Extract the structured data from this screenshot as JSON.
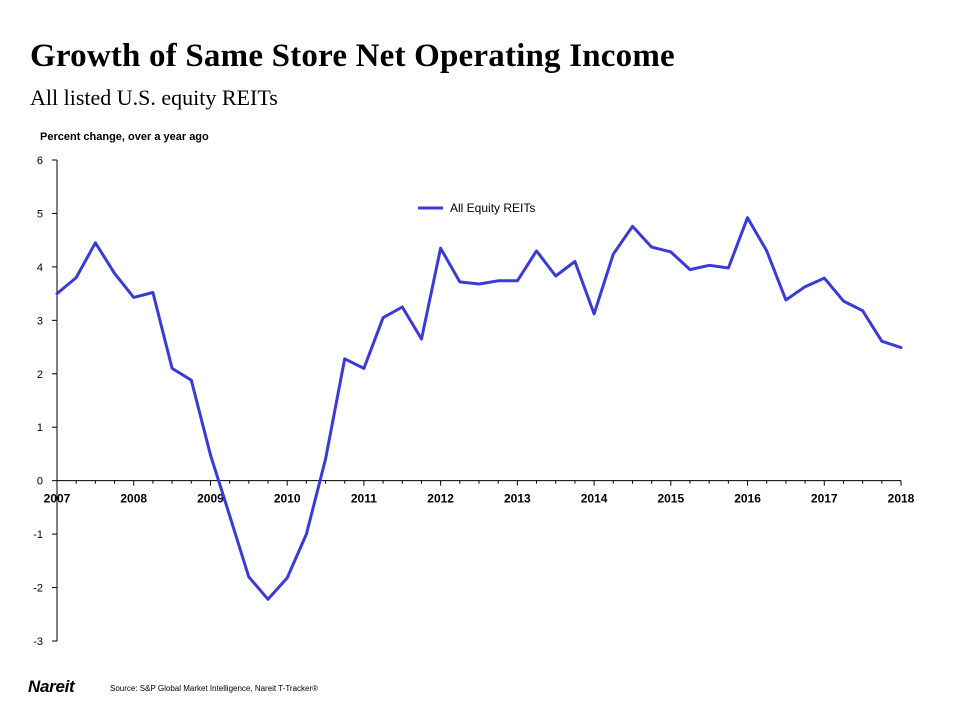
{
  "header": {
    "title": "Growth of Same Store Net Operating Income",
    "subtitle": "All listed U.S. equity REITs"
  },
  "footer": {
    "brand": "Nareit",
    "source": "Source: S&P Global Market Intelligence, Nareit T-Tracker®"
  },
  "colors": {
    "series": "#3a3ad8",
    "axis": "#000000"
  },
  "chart_data": {
    "type": "line",
    "ylabel": "Percent change, over a year ago",
    "xlabel": "",
    "ylim": [
      -3,
      6
    ],
    "yticks": [
      6,
      5,
      4,
      3,
      2,
      1,
      0,
      -1,
      -2,
      -3
    ],
    "xticks": [
      "2007",
      "2008",
      "2009",
      "2010",
      "2011",
      "2012",
      "2013",
      "2014",
      "2015",
      "2016",
      "2017",
      "2018"
    ],
    "xlim": [
      2007,
      2018
    ],
    "grid": false,
    "legend_position": "top-center",
    "series": [
      {
        "name": "All Equity REITs",
        "x": [
          2007.0,
          2007.25,
          2007.5,
          2007.75,
          2008.0,
          2008.25,
          2008.5,
          2008.75,
          2009.0,
          2009.25,
          2009.5,
          2009.75,
          2010.0,
          2010.25,
          2010.5,
          2010.75,
          2011.0,
          2011.25,
          2011.5,
          2011.75,
          2012.0,
          2012.25,
          2012.5,
          2012.75,
          2013.0,
          2013.25,
          2013.5,
          2013.75,
          2014.0,
          2014.25,
          2014.5,
          2014.75,
          2015.0,
          2015.25,
          2015.5,
          2015.75,
          2016.0,
          2016.25,
          2016.5,
          2016.75,
          2017.0,
          2017.25,
          2017.5,
          2017.75,
          2018.0
        ],
        "values": [
          3.5,
          3.8,
          4.45,
          3.88,
          3.43,
          3.52,
          2.1,
          1.88,
          0.48,
          -0.65,
          -1.8,
          -2.22,
          -1.82,
          -1.0,
          0.4,
          2.28,
          2.1,
          3.05,
          3.25,
          2.65,
          4.35,
          3.72,
          3.68,
          3.74,
          3.74,
          4.3,
          3.83,
          4.1,
          3.12,
          4.24,
          4.76,
          4.37,
          4.28,
          3.95,
          4.03,
          3.98,
          4.92,
          4.3,
          3.38,
          3.63,
          3.79,
          3.36,
          3.18,
          2.61,
          2.49
        ]
      }
    ]
  }
}
